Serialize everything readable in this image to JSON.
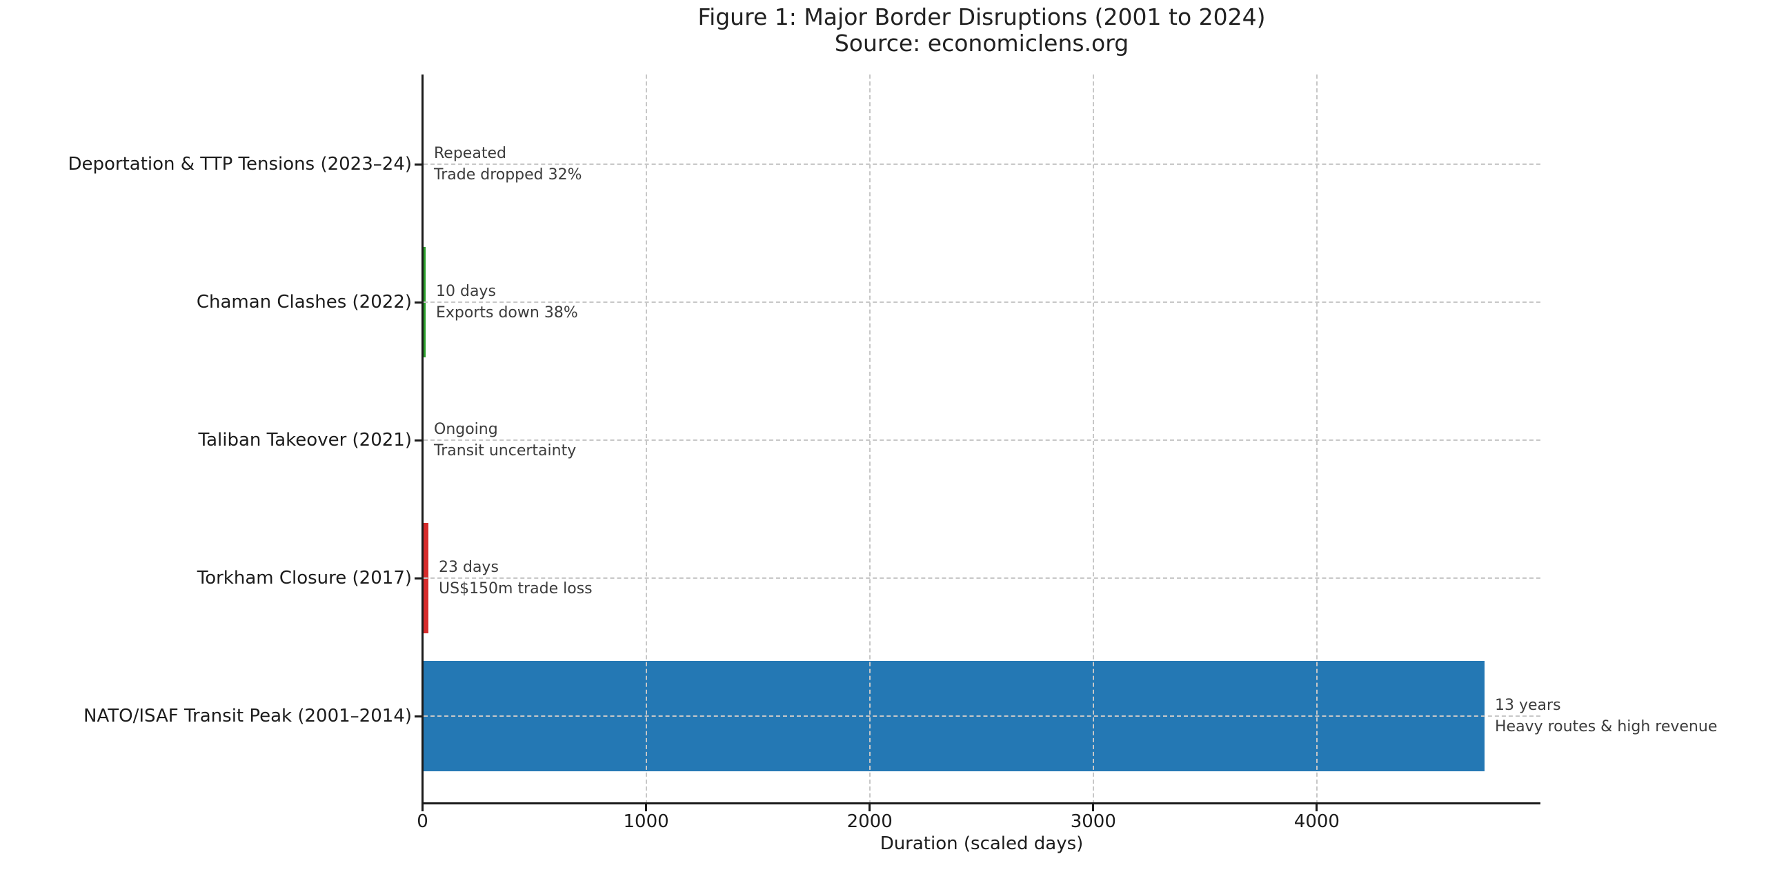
{
  "figure": {
    "title": "Figure 1: Major Border Disruptions (2001 to 2024)",
    "subtitle": "Source: economiclens.org"
  },
  "chart_data": {
    "type": "bar",
    "orientation": "horizontal",
    "title": "Figure 1: Major Border Disruptions (2001 to 2024)",
    "subtitle": "Source: economiclens.org",
    "xlabel": "Duration (scaled days)",
    "ylabel": "",
    "xlim": [
      0,
      5000
    ],
    "xticks": [
      0,
      1000,
      2000,
      3000,
      4000
    ],
    "grid": "dashed gray, horizontal line at each category and vertical line at each x tick, drawn over bars",
    "legend": "none",
    "rows": [
      {
        "category": "Deportation & TTP Tensions (2023–24)",
        "value": 0,
        "duration_label": "Repeated",
        "impact_label": "Trade dropped 32%",
        "color": "#2478b4"
      },
      {
        "category": "Chaman Clashes (2022)",
        "value": 10,
        "duration_label": "10 days",
        "impact_label": "Exports down 38%",
        "color": "#2ca02c"
      },
      {
        "category": "Taliban Takeover (2021)",
        "value": 0,
        "duration_label": "Ongoing",
        "impact_label": "Transit uncertainty",
        "color": "#2478b4"
      },
      {
        "category": "Torkham Closure (2017)",
        "value": 23,
        "duration_label": "23 days",
        "impact_label": "US$150m trade loss",
        "color": "#d62b2b"
      },
      {
        "category": "NATO/ISAF Transit Peak (2001–2014)",
        "value": 4745,
        "duration_label": "13 years",
        "impact_label": "Heavy routes & high revenue",
        "color": "#2478b4"
      }
    ]
  },
  "colors": {
    "background": "#ffffff",
    "bar_blue": "#2478b4",
    "bar_red": "#d62b2b",
    "bar_green": "#2ca02c",
    "axis": "#1a1a1a",
    "grid": "#c7c7c7",
    "tick_label_text": "#1c1c1c",
    "annotation_text": "#3c3c3c",
    "title_text": "#212121"
  }
}
